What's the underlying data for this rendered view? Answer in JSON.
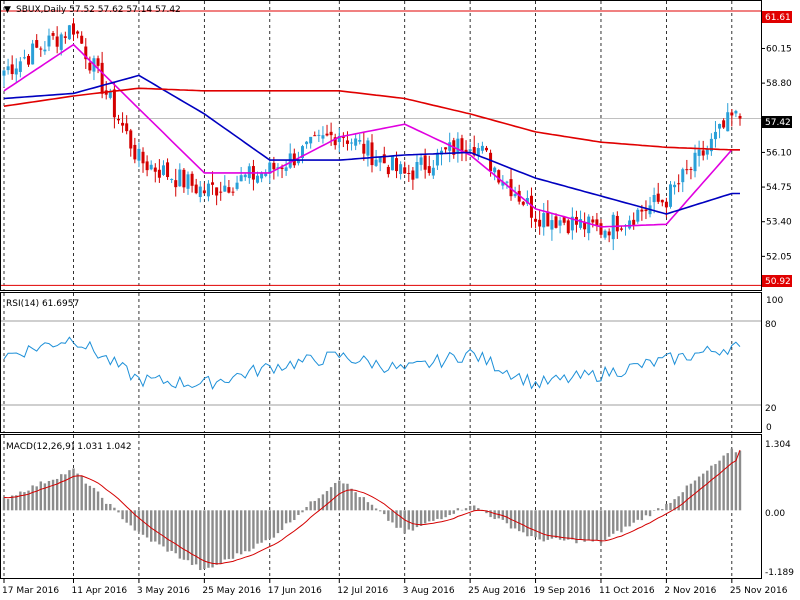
{
  "colors": {
    "background": "#ffffff",
    "axis": "#000000",
    "grid": "#000000",
    "bull": "#2aa0d8",
    "bear": "#d40000",
    "ma_fast": "#e000e0",
    "ma_mid": "#0000c0",
    "ma_slow": "#e00000",
    "rsi_line": "#1e90d8",
    "macd_hist": "#8c8c8c",
    "macd_signal": "#d40000",
    "hline": "#e00000",
    "rsi_level": "#7f7f7f",
    "price_tag_bg": "#000000",
    "price_tag_text": "#ffffff"
  },
  "header": {
    "icon": "chevron-down-icon",
    "text": "SBUX,Daily  57.52 57.62 57.14 57.42"
  },
  "price_tags": {
    "resistance": "61.61",
    "current": "57.42",
    "support": "50.92"
  },
  "rsi": {
    "label": "RSI(14) 61.6957",
    "ticks": [
      "100",
      "80",
      "20",
      "0"
    ]
  },
  "macd": {
    "label": "MACD(12,26,9) 1.031 1.042",
    "ticks": [
      "1.304",
      "0.00",
      "-1.189"
    ]
  },
  "x_labels": [
    "17 Mar 2016",
    "11 Apr 2016",
    "3 May 2016",
    "25 May 2016",
    "17 Jun 2016",
    "12 Jul 2016",
    "3 Aug 2016",
    "25 Aug 2016",
    "19 Sep 2016",
    "11 Oct 2016",
    "2 Nov 2016",
    "25 Nov 2016"
  ],
  "chart_data": {
    "type": "candlestick",
    "symbol": "SBUX",
    "timeframe": "Daily",
    "ohlc_last": {
      "open": 57.52,
      "high": 57.62,
      "low": 57.14,
      "close": 57.42
    },
    "price_axis": {
      "ticks": [
        "61.61",
        "60.15",
        "58.80",
        "57.42",
        "56.10",
        "54.75",
        "53.40",
        "52.05",
        "50.92"
      ],
      "ylim": [
        50.7,
        62.0
      ]
    },
    "horizontal_lines": [
      61.61,
      50.92
    ],
    "x_categories": [
      "17 Mar 2016",
      "11 Apr 2016",
      "3 May 2016",
      "25 May 2016",
      "17 Jun 2016",
      "12 Jul 2016",
      "3 Aug 2016",
      "25 Aug 2016",
      "19 Sep 2016",
      "11 Oct 2016",
      "2 Nov 2016",
      "25 Nov 2016"
    ],
    "close_by_label": [
      59.3,
      61.0,
      55.8,
      54.6,
      55.4,
      56.9,
      55.2,
      56.6,
      53.7,
      53.1,
      54.3,
      57.42
    ],
    "moving_averages": [
      {
        "color": "magenta",
        "values": [
          58.5,
          60.3,
          57.8,
          55.3,
          55.3,
          56.7,
          57.2,
          56.0,
          53.9,
          53.2,
          53.3,
          56.2
        ]
      },
      {
        "color": "blue",
        "values": [
          58.2,
          58.4,
          59.1,
          57.6,
          55.8,
          55.8,
          56.0,
          56.1,
          55.1,
          54.4,
          53.7,
          54.5
        ]
      },
      {
        "color": "red",
        "values": [
          57.9,
          58.3,
          58.6,
          58.5,
          58.5,
          58.5,
          58.2,
          57.6,
          56.9,
          56.5,
          56.3,
          56.2
        ]
      }
    ],
    "rsi": {
      "period": 14,
      "last": 61.6957,
      "levels": [
        80,
        20
      ],
      "ylim": [
        0,
        100
      ]
    },
    "macd": {
      "fast": 12,
      "slow": 26,
      "signal": 9,
      "main_last": 1.031,
      "signal_last": 1.042,
      "ylim": [
        -1.189,
        1.304
      ]
    }
  }
}
